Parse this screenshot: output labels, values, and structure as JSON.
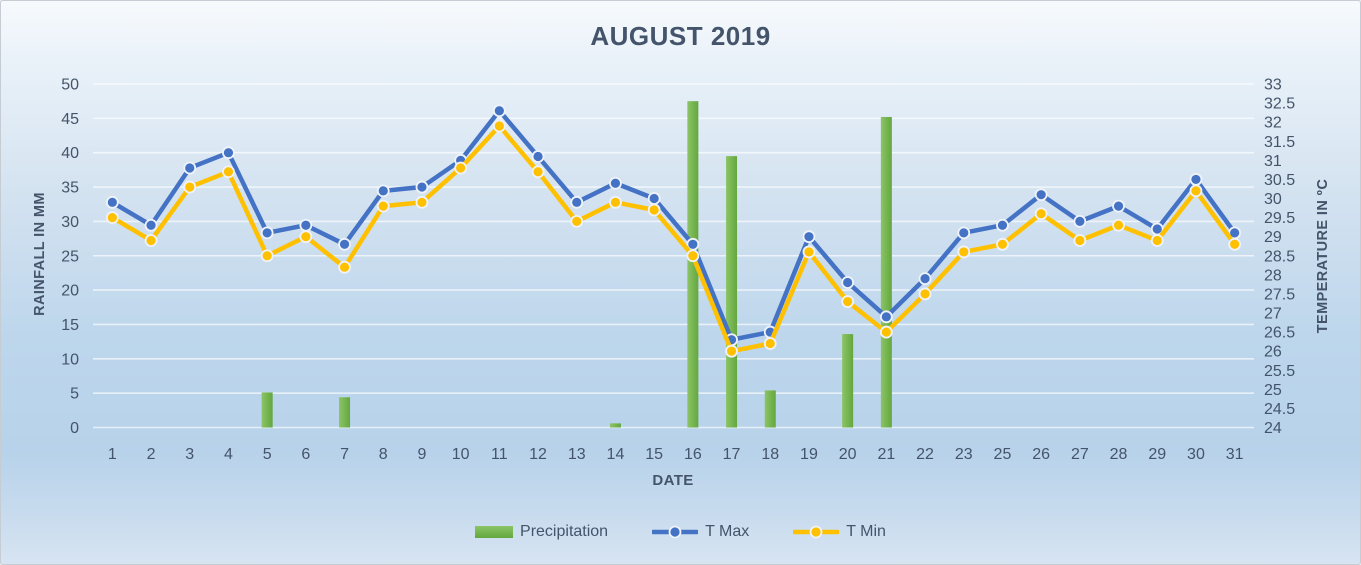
{
  "chart_data": {
    "type": "combo",
    "title": "AUGUST 2019",
    "xlabel": "DATE",
    "ylabel_left": "RAINFALL IN MM",
    "ylabel_right": "TEMPERATURE IN ºC",
    "grid": true,
    "legend_position": "bottom",
    "categories": [
      "1",
      "2",
      "3",
      "4",
      "5",
      "6",
      "7",
      "8",
      "9",
      "10",
      "11",
      "12",
      "13",
      "14",
      "15",
      "16",
      "17",
      "18",
      "19",
      "20",
      "21",
      "22",
      "23",
      "25",
      "26",
      "27",
      "28",
      "29",
      "30",
      "31"
    ],
    "left_axis": {
      "min": 0,
      "max": 50,
      "step": 5
    },
    "right_axis": {
      "min": 24,
      "max": 33,
      "step": 0.5
    },
    "series": [
      {
        "name": "Precipitation",
        "type": "bar",
        "axis": "left",
        "color": "#70AD47",
        "values": [
          0,
          0,
          0,
          0,
          5.1,
          0,
          4.4,
          0,
          0,
          0,
          0,
          0,
          0,
          0.6,
          0,
          47.5,
          39.5,
          5.4,
          0,
          13.6,
          45.2,
          0,
          0,
          0,
          0,
          0,
          0,
          0,
          0,
          0
        ]
      },
      {
        "name": "T Max",
        "type": "line",
        "axis": "right",
        "color": "#4472C4",
        "values": [
          29.9,
          29.3,
          30.8,
          31.2,
          29.1,
          29.3,
          28.8,
          30.2,
          30.3,
          31.0,
          32.3,
          31.1,
          29.9,
          30.4,
          30.0,
          28.8,
          26.3,
          26.5,
          29.0,
          27.8,
          26.9,
          27.9,
          29.1,
          29.3,
          30.1,
          29.4,
          29.8,
          29.2,
          30.5,
          29.1
        ]
      },
      {
        "name": "T Min",
        "type": "line",
        "axis": "right",
        "color": "#FFC000",
        "values": [
          29.5,
          28.9,
          30.3,
          30.7,
          28.5,
          29.0,
          28.2,
          29.8,
          29.9,
          30.8,
          31.9,
          30.7,
          29.4,
          29.9,
          29.7,
          28.5,
          26.0,
          26.2,
          28.6,
          27.3,
          26.5,
          27.5,
          28.6,
          28.8,
          29.6,
          28.9,
          29.3,
          28.9,
          30.2,
          28.8
        ]
      }
    ],
    "colors": {
      "axis_text": "#44546A",
      "gridline": "#ffffff",
      "bar_gradient_light": "#8CC466",
      "bar_gradient_dark": "#63A73E",
      "marker_outline": "#EFF3F9"
    }
  }
}
